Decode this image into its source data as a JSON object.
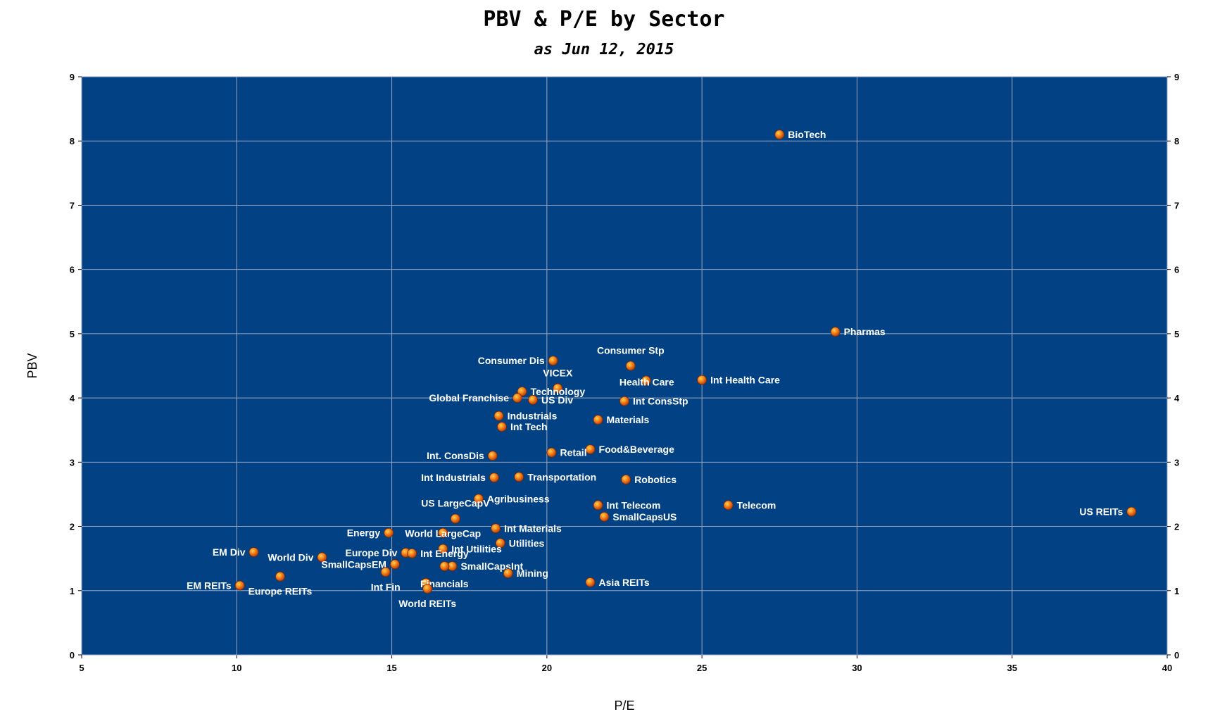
{
  "chart_data": {
    "type": "scatter",
    "title": "PBV & P/E by Sector",
    "subtitle": "as Jun 12, 2015",
    "xlabel": "P/E",
    "ylabel": "PBV",
    "xlim": [
      5,
      40
    ],
    "ylim": [
      0,
      9
    ],
    "xticks": [
      5,
      10,
      15,
      20,
      25,
      30,
      35,
      40
    ],
    "yticks": [
      0,
      1,
      2,
      3,
      4,
      5,
      6,
      7,
      8,
      9
    ],
    "grid": true,
    "legend": "none",
    "colors": {
      "plot_bg": "#024284",
      "grid": "#9aa6c0",
      "marker": "#f07a1c",
      "marker_highlight": "#ffd24a",
      "label": "#ffffff"
    },
    "points": [
      {
        "label": "BioTech",
        "x": 27.5,
        "y": 8.1,
        "pos": "right"
      },
      {
        "label": "Pharmas",
        "x": 29.3,
        "y": 5.03,
        "pos": "right"
      },
      {
        "label": "Consumer Dis",
        "x": 20.2,
        "y": 4.58,
        "pos": "left"
      },
      {
        "label": "Consumer Stp",
        "x": 22.7,
        "y": 4.5,
        "pos": "above"
      },
      {
        "label": "Int Health Care",
        "x": 25.0,
        "y": 4.28,
        "pos": "right"
      },
      {
        "label": "Health Care",
        "x": 23.2,
        "y": 4.27,
        "pos": "left-near"
      },
      {
        "label": "VICEX",
        "x": 20.35,
        "y": 4.15,
        "pos": "above"
      },
      {
        "label": "Technology",
        "x": 19.2,
        "y": 4.1,
        "pos": "right"
      },
      {
        "label": "Global Franchise",
        "x": 19.05,
        "y": 4.0,
        "pos": "left"
      },
      {
        "label": "US Div",
        "x": 19.55,
        "y": 3.97,
        "pos": "right"
      },
      {
        "label": "Int ConsStp",
        "x": 22.5,
        "y": 3.95,
        "pos": "right"
      },
      {
        "label": "Industrials",
        "x": 18.45,
        "y": 3.72,
        "pos": "right"
      },
      {
        "label": "Materials",
        "x": 21.65,
        "y": 3.66,
        "pos": "right"
      },
      {
        "label": "Int Tech",
        "x": 18.55,
        "y": 3.55,
        "pos": "right"
      },
      {
        "label": "Food&Beverage",
        "x": 21.4,
        "y": 3.2,
        "pos": "right"
      },
      {
        "label": "Retail",
        "x": 20.15,
        "y": 3.15,
        "pos": "right"
      },
      {
        "label": "Int. ConsDis",
        "x": 18.25,
        "y": 3.1,
        "pos": "left"
      },
      {
        "label": "Transportation",
        "x": 19.1,
        "y": 2.77,
        "pos": "right"
      },
      {
        "label": "Int Industrials",
        "x": 18.3,
        "y": 2.76,
        "pos": "left"
      },
      {
        "label": "Robotics",
        "x": 22.55,
        "y": 2.73,
        "pos": "right"
      },
      {
        "label": "Agribusiness",
        "x": 17.8,
        "y": 2.43,
        "pos": "right"
      },
      {
        "label": "US LargeCapV",
        "x": 17.05,
        "y": 2.12,
        "pos": "above"
      },
      {
        "label": "Int Telecom",
        "x": 21.65,
        "y": 2.33,
        "pos": "right"
      },
      {
        "label": "Telecom",
        "x": 25.85,
        "y": 2.33,
        "pos": "right"
      },
      {
        "label": "US REITs",
        "x": 38.85,
        "y": 2.23,
        "pos": "left"
      },
      {
        "label": "SmallCapsUS",
        "x": 21.85,
        "y": 2.15,
        "pos": "right"
      },
      {
        "label": "Int Materials",
        "x": 18.35,
        "y": 1.97,
        "pos": "right"
      },
      {
        "label": "Energy",
        "x": 14.9,
        "y": 1.9,
        "pos": "left"
      },
      {
        "label": "World LargeCap",
        "x": 16.65,
        "y": 1.9,
        "pos": "center"
      },
      {
        "label": "Utilities",
        "x": 18.5,
        "y": 1.74,
        "pos": "right"
      },
      {
        "label": "EM Div",
        "x": 10.55,
        "y": 1.6,
        "pos": "left"
      },
      {
        "label": "Int Utilities",
        "x": 16.65,
        "y": 1.65,
        "pos": "right"
      },
      {
        "label": "Europe Div",
        "x": 15.45,
        "y": 1.59,
        "pos": "left"
      },
      {
        "label": "Int Energy",
        "x": 15.65,
        "y": 1.58,
        "pos": "right"
      },
      {
        "label": "World Div",
        "x": 12.75,
        "y": 1.52,
        "pos": "left"
      },
      {
        "label": "SmallCapsEM",
        "x": 15.1,
        "y": 1.41,
        "pos": "left"
      },
      {
        "label": "SmallCapsInt",
        "x": 16.95,
        "y": 1.38,
        "pos": "right"
      },
      {
        "label": "",
        "x": 16.7,
        "y": 1.38,
        "pos": "none"
      },
      {
        "label": "Int Fin",
        "x": 14.8,
        "y": 1.29,
        "pos": "below"
      },
      {
        "label": "Mining",
        "x": 18.75,
        "y": 1.27,
        "pos": "right"
      },
      {
        "label": "Europe REITs",
        "x": 11.4,
        "y": 1.22,
        "pos": "below"
      },
      {
        "label": "Financials",
        "x": 16.1,
        "y": 1.12,
        "pos": "right-near"
      },
      {
        "label": "Asia REITs",
        "x": 21.4,
        "y": 1.13,
        "pos": "right"
      },
      {
        "label": "EM REITs",
        "x": 10.1,
        "y": 1.08,
        "pos": "left"
      },
      {
        "label": "World REITs",
        "x": 16.15,
        "y": 1.03,
        "pos": "below"
      }
    ]
  }
}
